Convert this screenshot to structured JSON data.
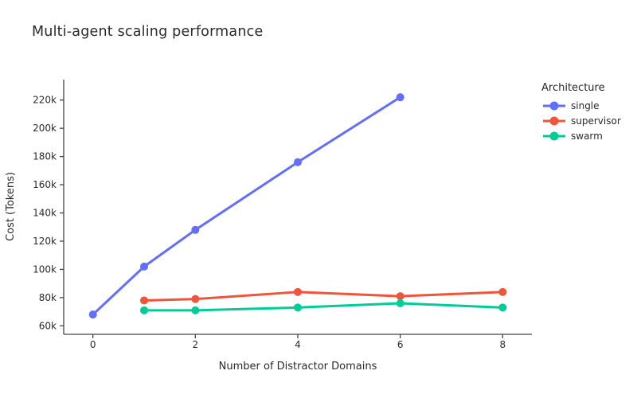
{
  "title": "Multi-agent scaling performance",
  "legend": {
    "title": "Architecture",
    "items": [
      "single",
      "supervisor",
      "swarm"
    ]
  },
  "colors": {
    "background": "#ffffff",
    "axis_line": "#444444",
    "text": "#2a2a2a",
    "single": "#636EFA",
    "supervisor": "#EF553B",
    "swarm": "#00CC96"
  },
  "chart_data": {
    "type": "line",
    "title": "Multi-agent scaling performance",
    "xlabel": "Number of Distractor Domains",
    "ylabel": "Cost (Tokens)",
    "legend_title": "Architecture",
    "legend_position": "top-right",
    "grid": false,
    "marker_style": "circle",
    "xlim": [
      -0.57,
      8.57
    ],
    "ylim": [
      54000,
      234500
    ],
    "xticks": [
      0,
      2,
      4,
      6,
      8
    ],
    "yticks": [
      {
        "value": 60000,
        "label": "60k"
      },
      {
        "value": 80000,
        "label": "80k"
      },
      {
        "value": 100000,
        "label": "100k"
      },
      {
        "value": 120000,
        "label": "120k"
      },
      {
        "value": 140000,
        "label": "140k"
      },
      {
        "value": 160000,
        "label": "160k"
      },
      {
        "value": 180000,
        "label": "180k"
      },
      {
        "value": 200000,
        "label": "200k"
      },
      {
        "value": 220000,
        "label": "220k"
      }
    ],
    "series": [
      {
        "name": "single",
        "color": "#636EFA",
        "x": [
          0,
          1,
          2,
          4,
          6
        ],
        "y": [
          68000,
          102000,
          128000,
          176000,
          222000
        ]
      },
      {
        "name": "supervisor",
        "color": "#EF553B",
        "x": [
          1,
          2,
          4,
          6,
          8
        ],
        "y": [
          78000,
          79000,
          84000,
          81000,
          84000
        ]
      },
      {
        "name": "swarm",
        "color": "#00CC96",
        "x": [
          1,
          2,
          4,
          6,
          8
        ],
        "y": [
          71000,
          71000,
          73000,
          76000,
          73000
        ]
      }
    ]
  }
}
